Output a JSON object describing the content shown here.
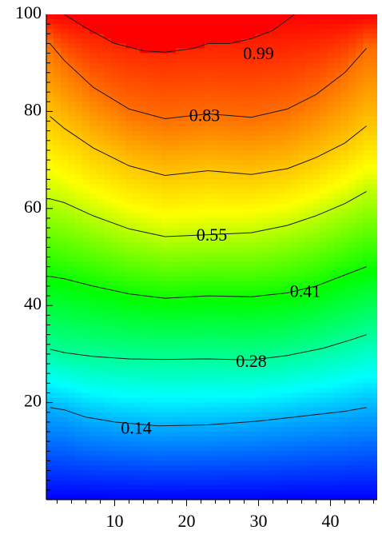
{
  "chart_data": {
    "type": "heatmap",
    "title": "",
    "xlabel": "",
    "ylabel": "",
    "xlim": [
      1,
      46
    ],
    "ylim": [
      0,
      100
    ],
    "xticks": [
      10,
      20,
      30,
      40
    ],
    "xtick_labels": [
      "10",
      "20",
      "30",
      "40"
    ],
    "yticks": [
      20,
      40,
      60,
      80,
      100
    ],
    "ytick_labels": [
      "20",
      "40",
      "60",
      "80",
      "100"
    ],
    "colorscale": [
      "#0000ff",
      "#00ffff",
      "#00ff00",
      "#ffff00",
      "#ff8000",
      "#ff0000"
    ],
    "value_range": [
      0,
      1
    ],
    "grid": false,
    "legend": "none",
    "contours": [
      {
        "level": 0.14,
        "label": "0.14",
        "label_at": [
          13,
          14.4
        ],
        "points": [
          [
            1,
            19
          ],
          [
            3,
            18.5
          ],
          [
            6,
            17
          ],
          [
            10,
            16
          ],
          [
            16,
            15.2
          ],
          [
            23,
            15.4
          ],
          [
            30,
            16.2
          ],
          [
            36,
            17.2
          ],
          [
            42,
            18.2
          ],
          [
            45,
            19
          ]
        ]
      },
      {
        "level": 0.28,
        "label": "0.28",
        "label_at": [
          29,
          28.2
        ],
        "points": [
          [
            1,
            31
          ],
          [
            3,
            30.3
          ],
          [
            7,
            29.5
          ],
          [
            12,
            29
          ],
          [
            17,
            28.9
          ],
          [
            23,
            29
          ],
          [
            29,
            28.8
          ],
          [
            34,
            29.7
          ],
          [
            39,
            31.2
          ],
          [
            43,
            33
          ],
          [
            45,
            34
          ]
        ]
      },
      {
        "level": 0.41,
        "label": "0.41",
        "label_at": [
          36.5,
          42.6
        ],
        "points": [
          [
            1,
            46
          ],
          [
            3,
            45.5
          ],
          [
            7,
            44
          ],
          [
            12,
            42.4
          ],
          [
            17,
            41.5
          ],
          [
            23,
            42
          ],
          [
            29,
            41.8
          ],
          [
            34,
            42.6
          ],
          [
            38,
            44
          ],
          [
            42,
            46.3
          ],
          [
            45,
            48
          ]
        ]
      },
      {
        "level": 0.55,
        "label": "0.55",
        "label_at": [
          23.5,
          54.2
        ],
        "points": [
          [
            1,
            62
          ],
          [
            3,
            61.2
          ],
          [
            7,
            58.5
          ],
          [
            12,
            55.8
          ],
          [
            17,
            54.2
          ],
          [
            23,
            54.6
          ],
          [
            29,
            55
          ],
          [
            34,
            56.5
          ],
          [
            38,
            58.5
          ],
          [
            42,
            61
          ],
          [
            45,
            63.5
          ]
        ]
      },
      {
        "level": 0.69,
        "label": "",
        "label_at": null,
        "points": [
          [
            1,
            79
          ],
          [
            3,
            76.5
          ],
          [
            7,
            72.5
          ],
          [
            12,
            68.8
          ],
          [
            17,
            66.8
          ],
          [
            23,
            67.8
          ],
          [
            29,
            67
          ],
          [
            34,
            68.2
          ],
          [
            38,
            70.5
          ],
          [
            42,
            73.5
          ],
          [
            45,
            77
          ]
        ]
      },
      {
        "level": 0.83,
        "label": "0.83",
        "label_at": [
          22.5,
          78.8
        ],
        "points": [
          [
            1,
            94
          ],
          [
            3,
            90.5
          ],
          [
            7,
            85
          ],
          [
            12,
            80.5
          ],
          [
            17,
            78.5
          ],
          [
            23,
            79.5
          ],
          [
            29,
            78.8
          ],
          [
            34,
            80.5
          ],
          [
            38,
            83.5
          ],
          [
            42,
            88
          ],
          [
            45,
            93
          ]
        ]
      },
      {
        "level": 0.99,
        "label": "0.99",
        "label_at": [
          30,
          91.6
        ],
        "points": [
          [
            3,
            100
          ],
          [
            6,
            97.2
          ],
          [
            10,
            94
          ],
          [
            14,
            92.5
          ],
          [
            17,
            92.2
          ],
          [
            21,
            93
          ],
          [
            23,
            94
          ],
          [
            26,
            94
          ],
          [
            29,
            95
          ],
          [
            32,
            96.7
          ],
          [
            35,
            100
          ]
        ]
      }
    ],
    "hot_region_peak": {
      "x": 16,
      "y": 100
    }
  }
}
